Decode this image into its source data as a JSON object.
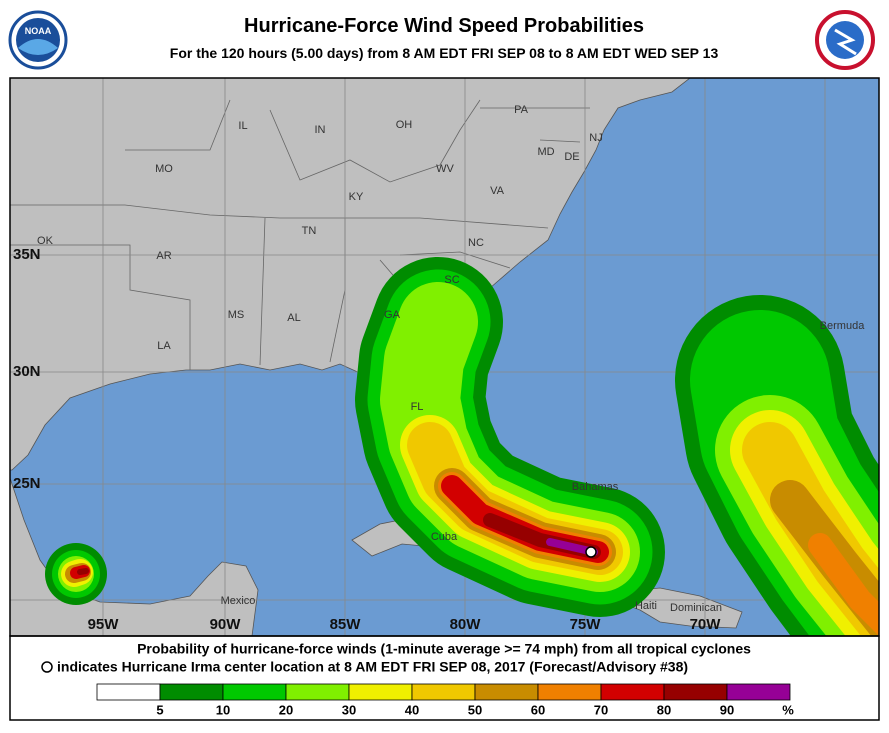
{
  "header": {
    "title": "Hurricane-Force Wind Speed Probabilities",
    "subtitle": "For the 120 hours (5.00 days) from 8 AM EDT FRI SEP 08 to 8 AM EDT WED SEP 13",
    "logo": "NOAA"
  },
  "map": {
    "places": [
      "IL",
      "IN",
      "OH",
      "PA",
      "NJ",
      "MD",
      "DE",
      "MO",
      "KY",
      "WV",
      "VA",
      "OK",
      "AR",
      "TN",
      "NC",
      "SC",
      "MS",
      "AL",
      "GA",
      "LA",
      "FL",
      "Bermuda",
      "Bahamas",
      "Cuba",
      "Mexico",
      "Haiti",
      "Dominican"
    ],
    "latitudes": [
      "35N",
      "30N",
      "25N"
    ],
    "longitudes": [
      "95W",
      "90W",
      "85W",
      "80W",
      "75W",
      "70W"
    ]
  },
  "footer": {
    "line1": "Probability of hurricane-force winds (1-minute average >= 74 mph) from all tropical cyclones",
    "line2": "indicates Hurricane Irma center location at 8 AM EDT FRI SEP 08, 2017 (Forecast/Advisory #38)"
  },
  "legend": {
    "colors": [
      "#ffffff",
      "#008c00",
      "#00c800",
      "#80f000",
      "#f0f000",
      "#f0c800",
      "#c88c00",
      "#f08000",
      "#d20000",
      "#960000",
      "#960096"
    ],
    "ticks": [
      5,
      10,
      20,
      30,
      40,
      50,
      60,
      70,
      80,
      90
    ],
    "unit": "%"
  }
}
